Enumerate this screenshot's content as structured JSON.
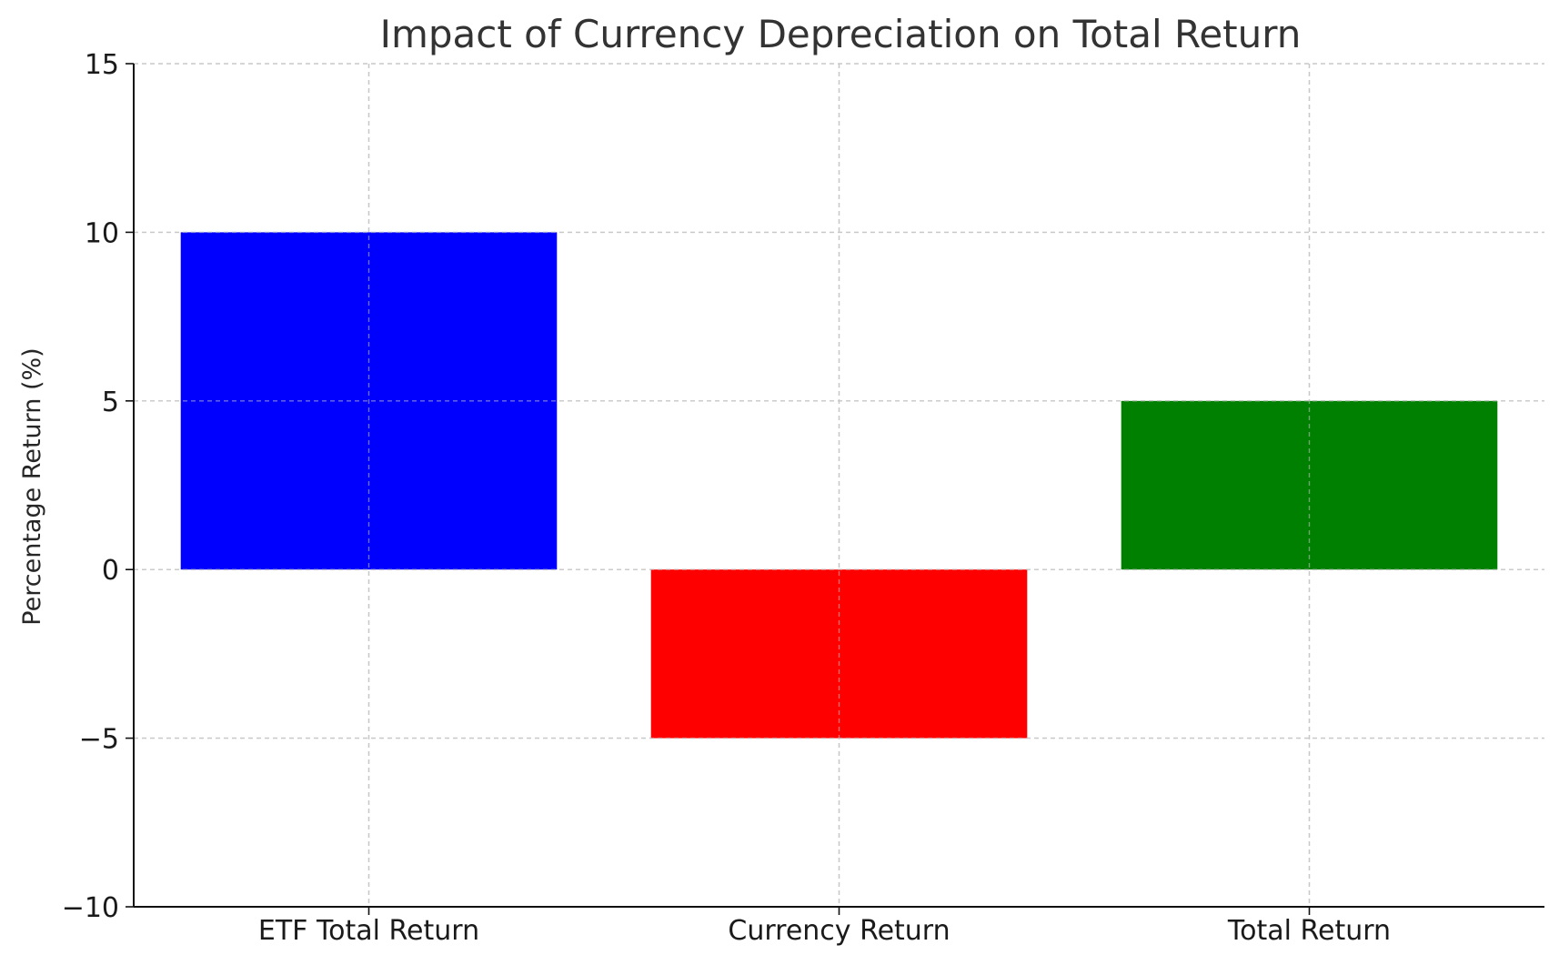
{
  "chart_data": {
    "type": "bar",
    "title": "Impact of Currency Depreciation on Total Return",
    "xlabel": "",
    "ylabel": "Percentage Return (%)",
    "categories": [
      "ETF Total Return",
      "Currency Return",
      "Total Return"
    ],
    "values": [
      10,
      -5,
      5
    ],
    "colors": [
      "#0000ff",
      "#ff0000",
      "#008000"
    ],
    "ylim": [
      -10,
      15
    ],
    "yticks": [
      -10,
      -5,
      0,
      5,
      10,
      15
    ],
    "ytick_labels": [
      "−10",
      "−5",
      "0",
      "5",
      "10",
      "15"
    ],
    "grid": true,
    "grid_style": "dashed"
  }
}
